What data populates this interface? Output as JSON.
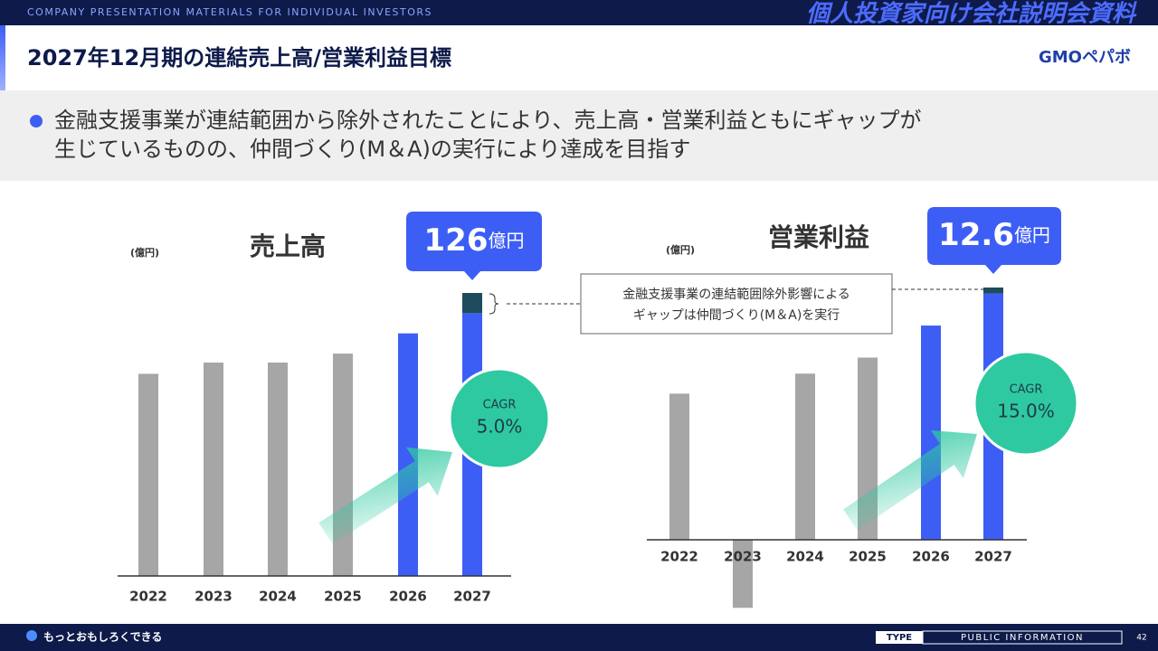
{
  "header": {
    "banner": "COMPANY PRESENTATION MATERIALS FOR INDIVIDUAL INVESTORS",
    "banner_jp": "個人投資家向け会社説明会資料",
    "title": "2027年12月期の連結売上高/営業利益目標",
    "logo": "GMOペパボ"
  },
  "bullet": [
    "金融支援事業が連結範囲から除外されたことにより、売上高・営業利益ともにギャップが",
    "生じているものの、仲間づくり(M＆A)の実行により達成を目指す"
  ],
  "note": [
    "金融支援事業の連結範囲除外影響による",
    "ギャップは仲間づくり(M＆A)を実行"
  ],
  "chart_data": [
    {
      "type": "bar",
      "stacked": true,
      "title": "売上高",
      "unit": "(億円)",
      "categories": [
        "2022",
        "2023",
        "2024",
        "2025",
        "2026",
        "2027"
      ],
      "series": [
        {
          "colors": [
            "#a6a6a6",
            "#a6a6a6",
            "#a6a6a6",
            "#a6a6a6",
            "#3d5ef5",
            "#3d5ef5"
          ],
          "values": [
            90,
            95,
            95,
            99,
            108,
            117
          ]
        },
        {
          "color": "#1f4b5e",
          "values": [
            null,
            null,
            null,
            null,
            null,
            9
          ]
        }
      ],
      "callout": {
        "value": "126",
        "unit": "億円"
      },
      "cagr": {
        "label": "CAGR",
        "value": "5.0%"
      }
    },
    {
      "type": "bar",
      "stacked": true,
      "title": "営業利益",
      "unit": "(億円)",
      "categories": [
        "2022",
        "2023",
        "2024",
        "2025",
        "2026",
        "2027"
      ],
      "series": [
        {
          "colors": [
            "#a6a6a6",
            "#a6a6a6",
            "#a6a6a6",
            "#a6a6a6",
            "#3d5ef5",
            "#3d5ef5"
          ],
          "values": [
            7.3,
            -3.4,
            8.3,
            9.1,
            10.7,
            12.3
          ]
        },
        {
          "color": "#1f4b5e",
          "values": [
            null,
            null,
            null,
            null,
            null,
            0.3
          ]
        }
      ],
      "callout": {
        "value": "12.6",
        "unit": "億円"
      },
      "cagr": {
        "label": "CAGR",
        "value": "15.0%"
      }
    }
  ],
  "footer": {
    "slogan": "もっとおもしろくできる",
    "type": "TYPE",
    "info": "PUBLIC INFORMATION",
    "page": "42"
  }
}
